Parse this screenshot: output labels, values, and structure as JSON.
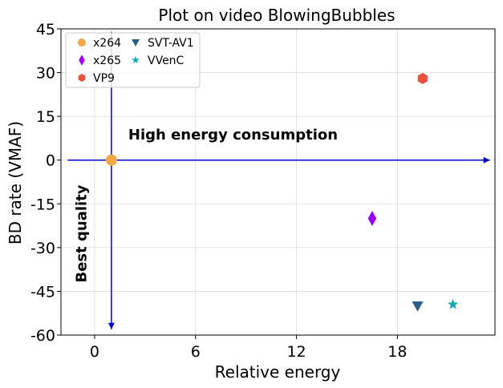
{
  "chart_data": {
    "type": "scatter",
    "title": "Plot on video BlowingBubbles",
    "xlabel": "Relative energy",
    "ylabel": "BD rate (VMAF)",
    "xlim": [
      -2,
      23.8
    ],
    "ylim": [
      -60,
      45
    ],
    "xticks": [
      0,
      6,
      12,
      18
    ],
    "yticks": [
      45,
      30,
      15,
      0,
      -15,
      -30,
      -45,
      -60
    ],
    "grid": true,
    "legend_position": "top-left",
    "series": [
      {
        "name": "x264",
        "marker": "circle",
        "color": "#f0a848",
        "x": [
          1.0
        ],
        "y": [
          0.0
        ]
      },
      {
        "name": "x265",
        "marker": "diamond",
        "color": "#9b00ff",
        "x": [
          16.5
        ],
        "y": [
          -20.0
        ]
      },
      {
        "name": "VP9",
        "marker": "hexagon",
        "color": "#e85040",
        "x": [
          19.5
        ],
        "y": [
          28.0
        ]
      },
      {
        "name": "SVT-AV1",
        "marker": "triangle-down",
        "color": "#2d5f86",
        "x": [
          19.2
        ],
        "y": [
          -50.0
        ]
      },
      {
        "name": "VVenC",
        "marker": "star",
        "color": "#15aab5",
        "x": [
          21.3
        ],
        "y": [
          -49.5
        ]
      }
    ],
    "annotations": [
      {
        "text": "High energy consumption",
        "x": 2.0,
        "y": 7.0,
        "rotation": 0
      },
      {
        "text": "Best quality",
        "x": -0.5,
        "y": -42.0,
        "rotation": -90
      }
    ],
    "arrow_color": "#0000cc",
    "arrows": [
      {
        "from": [
          -1.6,
          0
        ],
        "to": [
          23.5,
          0
        ]
      },
      {
        "from": [
          1.0,
          44
        ],
        "to": [
          1.0,
          -58
        ]
      }
    ]
  }
}
